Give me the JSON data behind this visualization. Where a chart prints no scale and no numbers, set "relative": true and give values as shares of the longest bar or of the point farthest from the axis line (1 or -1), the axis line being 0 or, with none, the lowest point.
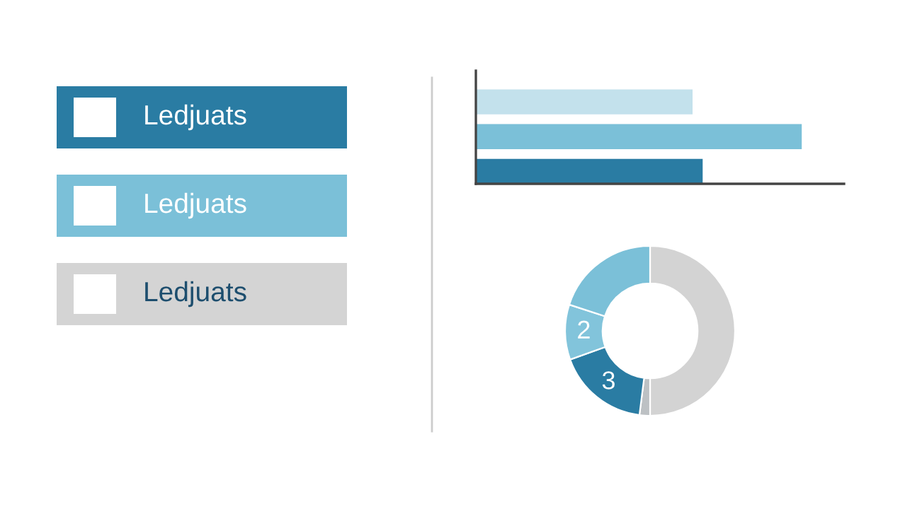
{
  "chart_data": [
    {
      "type": "other",
      "annotations": [
        "Ledjuats",
        "Ledjuats",
        "Ledjuats"
      ],
      "colors": [
        "#2a7ca3",
        "#7bc0d8",
        "#d4d4d4"
      ]
    },
    {
      "type": "bar",
      "orientation": "horizontal",
      "relative": true,
      "categories": [
        null,
        null,
        null
      ],
      "values": [
        0.665,
        1,
        0.696
      ],
      "colors": [
        "#c3e1ec",
        "#7bc0d8",
        "#2a7ca3"
      ]
    },
    {
      "type": "donut",
      "categories": [
        null,
        null,
        "3",
        "2",
        null
      ],
      "values": [
        50,
        2,
        17.5,
        10.5,
        20
      ],
      "colors": [
        "#d3d3d3",
        "#bdc1c4",
        "#2a7ca3",
        "#82c4db",
        "#7bc0d8"
      ]
    }
  ]
}
